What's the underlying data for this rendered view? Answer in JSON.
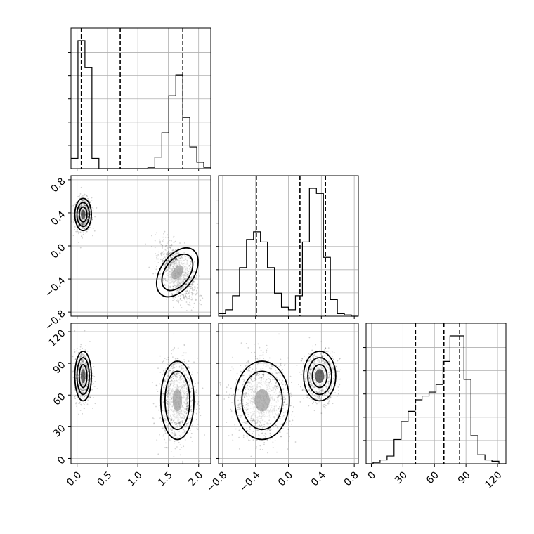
{
  "chart_data": {
    "type": "corner",
    "grid": true,
    "parameters": [
      {
        "id": "p0",
        "range": [
          -0.1,
          2.2
        ],
        "ticks": [
          0.0,
          0.5,
          1.0,
          1.5,
          2.0
        ],
        "tick_labels": [
          "0.0",
          "0.5",
          "1.0",
          "1.5",
          "2.0"
        ],
        "quantiles": [
          0.07,
          0.71,
          1.74
        ],
        "hist_edges": [
          -0.1,
          0.015,
          0.13,
          0.245,
          0.36,
          0.475,
          0.59,
          0.705,
          0.82,
          0.935,
          1.05,
          1.165,
          1.28,
          1.395,
          1.51,
          1.625,
          1.74,
          1.855,
          1.97,
          2.085,
          2.2
        ],
        "hist_values": [
          0.08,
          1.0,
          0.79,
          0.08,
          0.0,
          0.0,
          0.0,
          0.0,
          0.0,
          0.0,
          0.0,
          0.01,
          0.09,
          0.28,
          0.57,
          0.73,
          0.4,
          0.17,
          0.05,
          0.01
        ]
      },
      {
        "id": "p1",
        "range": [
          -0.85,
          0.85
        ],
        "ticks": [
          -0.8,
          -0.4,
          0.0,
          0.4,
          0.8
        ],
        "tick_labels": [
          "−0.8",
          "−0.4",
          "0.0",
          "0.4",
          "0.8"
        ],
        "quantiles": [
          -0.39,
          0.14,
          0.45
        ],
        "hist_edges": [
          -0.85,
          -0.765,
          -0.68,
          -0.595,
          -0.51,
          -0.425,
          -0.34,
          -0.255,
          -0.17,
          -0.085,
          0.0,
          0.085,
          0.17,
          0.255,
          0.34,
          0.425,
          0.51,
          0.595,
          0.68,
          0.765,
          0.85
        ],
        "hist_values": [
          0.02,
          0.05,
          0.16,
          0.38,
          0.6,
          0.66,
          0.58,
          0.38,
          0.18,
          0.07,
          0.05,
          0.16,
          0.58,
          1.0,
          0.96,
          0.46,
          0.13,
          0.02,
          0.01,
          0.0
        ]
      },
      {
        "id": "p2",
        "range": [
          -5,
          128
        ],
        "ticks": [
          0,
          30,
          60,
          90,
          120
        ],
        "tick_labels": [
          "0",
          "30",
          "60",
          "90",
          "120"
        ],
        "quantiles": [
          42,
          69,
          84
        ],
        "hist_edges": [
          -5,
          1.65,
          8.3,
          14.95,
          21.6,
          28.25,
          34.9,
          41.55,
          48.2,
          54.85,
          61.5,
          68.15,
          74.8,
          81.45,
          88.1,
          94.75,
          101.4,
          108.05,
          114.7,
          121.35,
          128
        ],
        "hist_values": [
          0.0,
          0.01,
          0.03,
          0.06,
          0.19,
          0.33,
          0.41,
          0.5,
          0.53,
          0.56,
          0.62,
          0.8,
          1.0,
          1.0,
          0.66,
          0.22,
          0.07,
          0.03,
          0.02,
          0.0
        ]
      }
    ],
    "blobs": {
      "p0": [
        {
          "cx": 0.1,
          "sx": 0.07,
          "w": 0.4
        },
        {
          "cx": 1.65,
          "sx": 0.14,
          "w": 0.6
        }
      ],
      "p1": [
        {
          "cx": 0.38,
          "sx": 0.1,
          "w": 0.4
        },
        {
          "cx": -0.32,
          "sx": 0.17,
          "w": 0.6
        }
      ],
      "p2": [
        {
          "cx": 78,
          "sx": 12,
          "w": 0.4
        },
        {
          "cx": 55,
          "sx": 19,
          "w": 0.6
        }
      ]
    }
  }
}
